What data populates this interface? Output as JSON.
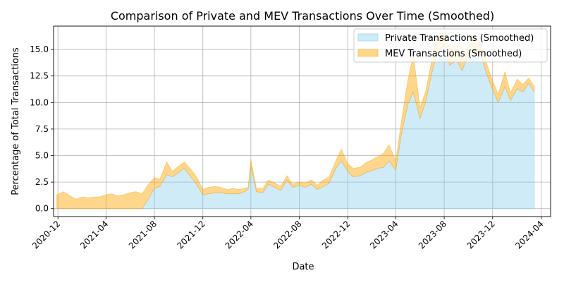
{
  "chart_data": {
    "type": "area",
    "title": "Comparison of Private and MEV Transactions Over Time (Smoothed)",
    "xlabel": "Date",
    "ylabel": "Percentage of Total Transactions",
    "xlim": [
      "2020-11-20",
      "2024-04-25"
    ],
    "ylim": [
      -0.75,
      17.2
    ],
    "grid": true,
    "legend_position": "top-right",
    "x_ticks": [
      "2020-12",
      "2021-04",
      "2021-08",
      "2021-12",
      "2022-04",
      "2022-08",
      "2022-12",
      "2023-04",
      "2023-08",
      "2023-12",
      "2024-04"
    ],
    "y_ticks": [
      "0.0",
      "2.5",
      "5.0",
      "7.5",
      "10.0",
      "12.5",
      "15.0"
    ],
    "x": [
      "2020-11-28",
      "2020-12-15",
      "2021-01-01",
      "2021-01-15",
      "2021-02-01",
      "2021-02-15",
      "2021-03-01",
      "2021-03-15",
      "2021-04-01",
      "2021-04-15",
      "2021-05-01",
      "2021-05-15",
      "2021-06-01",
      "2021-06-15",
      "2021-07-01",
      "2021-07-15",
      "2021-08-01",
      "2021-08-15",
      "2021-09-01",
      "2021-09-15",
      "2021-10-01",
      "2021-10-15",
      "2021-11-01",
      "2021-11-15",
      "2021-12-01",
      "2021-12-15",
      "2022-01-01",
      "2022-01-15",
      "2022-02-01",
      "2022-02-15",
      "2022-03-01",
      "2022-03-15",
      "2022-03-25",
      "2022-04-01",
      "2022-04-15",
      "2022-05-01",
      "2022-05-15",
      "2022-06-01",
      "2022-06-15",
      "2022-07-01",
      "2022-07-15",
      "2022-08-01",
      "2022-08-15",
      "2022-09-01",
      "2022-09-15",
      "2022-10-01",
      "2022-10-15",
      "2022-11-01",
      "2022-11-15",
      "2022-12-01",
      "2022-12-15",
      "2023-01-01",
      "2023-01-15",
      "2023-02-01",
      "2023-02-15",
      "2023-03-01",
      "2023-03-15",
      "2023-04-01",
      "2023-04-15",
      "2023-05-01",
      "2023-05-15",
      "2023-06-01",
      "2023-06-15",
      "2023-07-01",
      "2023-07-15",
      "2023-08-01",
      "2023-08-15",
      "2023-09-01",
      "2023-09-15",
      "2023-10-01",
      "2023-10-15",
      "2023-11-01",
      "2023-11-15",
      "2023-12-01",
      "2023-12-15",
      "2024-01-01",
      "2024-01-15",
      "2024-02-01",
      "2024-02-15",
      "2024-03-01",
      "2024-03-15"
    ],
    "series": [
      {
        "name": "Private Transactions (Smoothed)",
        "color": "#87ceeb",
        "values": [
          0,
          0,
          0,
          0,
          0,
          0,
          0,
          0,
          0,
          0,
          0,
          0,
          0,
          0,
          0,
          0.8,
          1.9,
          2.1,
          3.2,
          3.0,
          3.4,
          3.8,
          3.0,
          2.3,
          1.3,
          1.4,
          1.5,
          1.5,
          1.4,
          1.4,
          1.4,
          1.6,
          1.8,
          4.0,
          1.6,
          1.5,
          2.3,
          2.0,
          1.7,
          2.7,
          2.0,
          2.2,
          2.0,
          2.3,
          1.8,
          2.1,
          2.4,
          3.8,
          4.5,
          3.5,
          3.0,
          3.1,
          3.4,
          3.6,
          3.8,
          3.9,
          4.5,
          3.6,
          7.0,
          9.8,
          11.0,
          8.5,
          10.0,
          12.8,
          14.8,
          15.5,
          13.5,
          14.0,
          13.0,
          14.5,
          15.2,
          14.5,
          12.8,
          11.2,
          10.0,
          11.5,
          10.2,
          11.3,
          11.0,
          11.8,
          11.0
        ]
      },
      {
        "name": "MEV Transactions (Smoothed)",
        "color": "#ffd280",
        "values": [
          1.3,
          1.6,
          1.2,
          0.9,
          1.1,
          1.0,
          1.1,
          1.1,
          1.3,
          1.4,
          1.2,
          1.3,
          1.5,
          1.6,
          1.4,
          2.2,
          2.9,
          2.8,
          4.4,
          3.5,
          4.0,
          4.4,
          3.7,
          3.0,
          1.8,
          2.0,
          2.1,
          2.0,
          1.8,
          1.9,
          1.8,
          1.9,
          2.0,
          4.6,
          1.9,
          1.9,
          2.7,
          2.4,
          2.1,
          3.1,
          2.3,
          2.5,
          2.4,
          2.7,
          2.2,
          2.7,
          3.0,
          4.5,
          5.6,
          4.2,
          3.8,
          3.9,
          4.3,
          4.6,
          4.9,
          5.2,
          6.0,
          4.5,
          8.2,
          12.0,
          14.5,
          9.5,
          11.0,
          14.0,
          16.3,
          16.7,
          15.0,
          15.5,
          14.2,
          15.3,
          16.2,
          15.6,
          13.8,
          12.0,
          10.8,
          12.9,
          10.9,
          12.2,
          11.7,
          12.3,
          11.5
        ]
      }
    ]
  }
}
